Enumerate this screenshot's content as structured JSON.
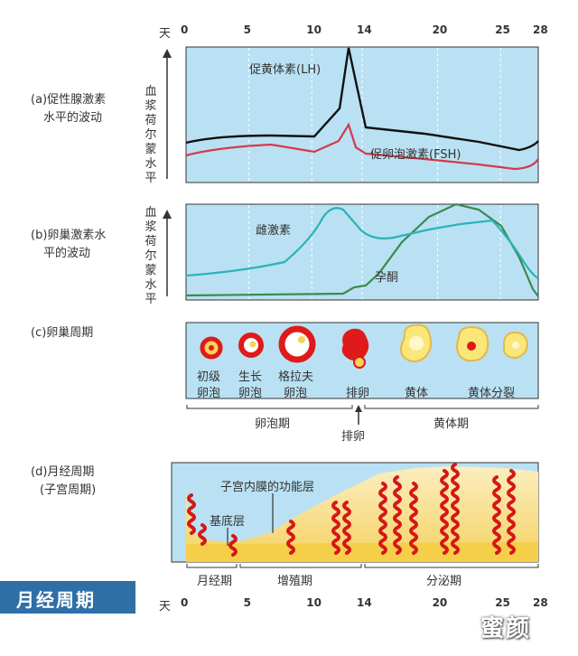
{
  "day_axis": {
    "unit": "天",
    "ticks": [
      "0",
      "5",
      "10",
      "14",
      "20",
      "25",
      "28"
    ]
  },
  "panel_a": {
    "title_line1": "(a)促性腺激素",
    "title_line2": "水平的波动",
    "ylabel": [
      "血",
      "浆",
      "荷",
      "尔",
      "蒙",
      "水",
      "平"
    ],
    "lh_label": "促黄体素(LH)",
    "fsh_label": "促卵泡激素(FSH)",
    "colors": {
      "lh": "#111111",
      "fsh": "#d43a4a",
      "bg": "#b9e1f3"
    }
  },
  "panel_b": {
    "title_line1": "(b)卵巢激素水",
    "title_line2": "平的波动",
    "ylabel": [
      "血",
      "浆",
      "荷",
      "尔",
      "蒙",
      "水",
      "平"
    ],
    "estrogen_label": "雌激素",
    "progesterone_label": "孕酮",
    "colors": {
      "estrogen": "#2bb3b8",
      "progesterone": "#3a8a4a"
    }
  },
  "panel_c": {
    "title": "(c)卵巢周期",
    "stages": [
      {
        "line1": "初级",
        "line2": "卵泡"
      },
      {
        "line1": "生长",
        "line2": "卵泡"
      },
      {
        "line1": "格拉夫",
        "line2": "卵泡"
      },
      {
        "line1": "排卵",
        "line2": ""
      },
      {
        "line1": "黄体",
        "line2": ""
      },
      {
        "line1": "黄体分裂",
        "line2": ""
      }
    ],
    "phase_follicular": "卵泡期",
    "phase_luteal": "黄体期",
    "ovulation": "排卵"
  },
  "panel_d": {
    "title_line1": "(d)月经周期",
    "title_line2": "(子宫周期)",
    "label_functional": "子宫内膜的功能层",
    "label_basal": "基底层",
    "phase_menstrual": "月经期",
    "phase_proliferative": "增殖期",
    "phase_secretory": "分泌期"
  },
  "footer_title": "月经周期",
  "watermark": "蜜颜"
}
